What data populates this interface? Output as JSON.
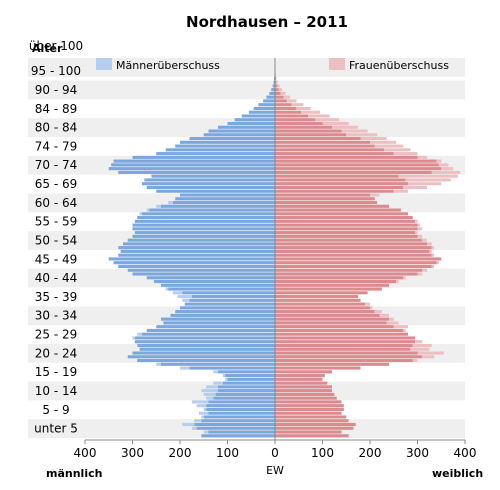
{
  "chart_data": {
    "type": "bar",
    "orientation": "horizontal-pyramid",
    "title": "Nordhausen – 2011",
    "y_axis_header": "Alter",
    "xlabel": "EW",
    "left_label": "männlich",
    "right_label": "weiblich",
    "xlim": [
      -400,
      400
    ],
    "x_ticks": [
      "400",
      "300",
      "200",
      "100",
      "0",
      "100",
      "200",
      "300",
      "400"
    ],
    "age_labels": [
      "unter 5",
      "5 - 9",
      "10 - 14",
      "15 - 19",
      "20 - 24",
      "25 - 29",
      "30 - 34",
      "35 - 39",
      "40 - 44",
      "45 - 49",
      "50 - 54",
      "55 - 59",
      "60 - 64",
      "65 - 69",
      "70 - 74",
      "74 - 79",
      "80 - 84",
      "84 - 89",
      "90 - 94",
      "95 - 100",
      "über 100"
    ],
    "legend": {
      "men_surplus": "Männerüberschuss",
      "women_surplus": "Frauenüberschuss"
    },
    "colors": {
      "men": "#7aa7e0",
      "men_surplus": "#b5cdee",
      "women": "#dc8a8e",
      "women_surplus": "#ecc0c2",
      "band": "#efefef",
      "axis": "#888888"
    },
    "age_years": [
      0,
      1,
      2,
      3,
      4,
      5,
      6,
      7,
      8,
      9,
      10,
      11,
      12,
      13,
      14,
      15,
      16,
      17,
      18,
      19,
      20,
      21,
      22,
      23,
      24,
      25,
      26,
      27,
      28,
      29,
      30,
      31,
      32,
      33,
      34,
      35,
      36,
      37,
      38,
      39,
      40,
      41,
      42,
      43,
      44,
      45,
      46,
      47,
      48,
      49,
      50,
      51,
      52,
      53,
      54,
      55,
      56,
      57,
      58,
      59,
      60,
      61,
      62,
      63,
      64,
      65,
      66,
      67,
      68,
      69,
      70,
      71,
      72,
      73,
      74,
      75,
      76,
      77,
      78,
      79,
      80,
      81,
      82,
      83,
      84,
      85,
      86,
      87,
      88,
      89,
      90,
      91,
      92,
      93,
      94,
      95,
      96,
      97,
      98,
      99,
      100
    ],
    "series": [
      {
        "name": "männlich",
        "values": [
          155,
          150,
          175,
          195,
          170,
          155,
          160,
          150,
          165,
          175,
          145,
          150,
          155,
          145,
          130,
          105,
          110,
          130,
          200,
          250,
          290,
          310,
          300,
          285,
          290,
          295,
          300,
          290,
          270,
          250,
          235,
          240,
          220,
          210,
          200,
          190,
          195,
          205,
          215,
          230,
          240,
          255,
          270,
          300,
          310,
          330,
          340,
          350,
          330,
          325,
          330,
          320,
          310,
          300,
          295,
          300,
          300,
          295,
          290,
          285,
          270,
          250,
          225,
          210,
          200,
          250,
          270,
          280,
          275,
          260,
          330,
          350,
          345,
          340,
          300,
          250,
          230,
          210,
          200,
          180,
          150,
          140,
          120,
          100,
          85,
          70,
          55,
          45,
          35,
          25,
          18,
          12,
          8,
          5,
          3,
          2,
          1,
          1,
          0,
          0,
          0
        ]
      },
      {
        "name": "weiblich",
        "values": [
          155,
          140,
          165,
          170,
          155,
          150,
          140,
          145,
          145,
          140,
          130,
          125,
          120,
          120,
          110,
          100,
          105,
          120,
          180,
          240,
          300,
          335,
          355,
          325,
          330,
          310,
          295,
          280,
          275,
          280,
          260,
          250,
          240,
          225,
          205,
          200,
          180,
          175,
          195,
          225,
          240,
          260,
          275,
          310,
          320,
          335,
          345,
          350,
          335,
          330,
          335,
          330,
          320,
          310,
          300,
          310,
          305,
          300,
          290,
          280,
          265,
          240,
          215,
          210,
          220,
          280,
          320,
          350,
          370,
          385,
          390,
          375,
          365,
          350,
          320,
          300,
          285,
          270,
          255,
          235,
          215,
          195,
          175,
          155,
          135,
          115,
          95,
          75,
          60,
          45,
          32,
          22,
          15,
          10,
          6,
          3,
          2,
          1,
          1,
          0,
          0
        ]
      }
    ]
  }
}
